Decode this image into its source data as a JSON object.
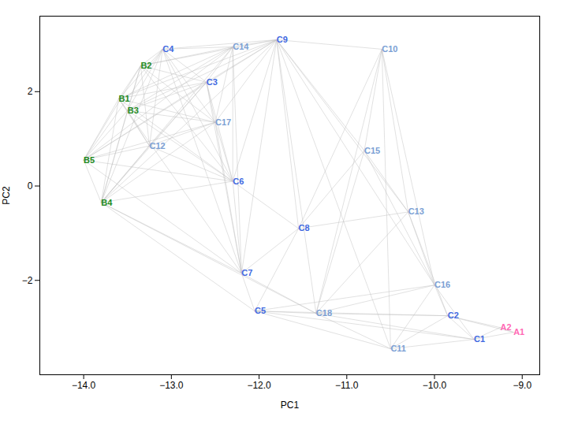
{
  "chart_data": {
    "type": "network",
    "xlabel": "PC1",
    "ylabel": "PC2",
    "xlim": [
      -14.5,
      -8.8
    ],
    "ylim": [
      -4.0,
      3.6
    ],
    "xticks": [
      -14,
      -13,
      -12,
      -11,
      -10,
      -9
    ],
    "yticks": [
      -2,
      0,
      2
    ],
    "color": "#C0C0C0",
    "nodes": [
      {
        "name": "A1",
        "label": "A1",
        "x": -9.1,
        "y": -3.1,
        "color": "#FF69B4"
      },
      {
        "name": "A2",
        "label": "A2",
        "x": -9.25,
        "y": -3.0,
        "color": "#FF69B4"
      },
      {
        "name": "B1",
        "label": "B1",
        "x": -13.6,
        "y": 1.85,
        "color": "#228B22"
      },
      {
        "name": "B2",
        "label": "B2",
        "x": -13.35,
        "y": 2.55,
        "color": "#228B22"
      },
      {
        "name": "B3",
        "label": "B3",
        "x": -13.5,
        "y": 1.6,
        "color": "#228B22"
      },
      {
        "name": "B4",
        "label": "B4",
        "x": -13.8,
        "y": -0.35,
        "color": "#228B22"
      },
      {
        "name": "B5",
        "label": "B5",
        "x": -14.0,
        "y": 0.55,
        "color": "#228B22"
      },
      {
        "name": "C1",
        "label": "C1",
        "x": -9.55,
        "y": -3.25,
        "color": "#4169E1"
      },
      {
        "name": "C2",
        "label": "C2",
        "x": -9.85,
        "y": -2.75,
        "color": "#4169E1"
      },
      {
        "name": "C3",
        "label": "C3",
        "x": -12.6,
        "y": 2.2,
        "color": "#4169E1"
      },
      {
        "name": "C4",
        "label": "C4",
        "x": -13.1,
        "y": 2.9,
        "color": "#4169E1"
      },
      {
        "name": "C5",
        "label": "C5",
        "x": -12.05,
        "y": -2.65,
        "color": "#4169E1"
      },
      {
        "name": "C6",
        "label": "C6",
        "x": -12.3,
        "y": 0.1,
        "color": "#4169E1"
      },
      {
        "name": "C7",
        "label": "C7",
        "x": -12.2,
        "y": -1.85,
        "color": "#4169E1"
      },
      {
        "name": "C8",
        "label": "C8",
        "x": -11.55,
        "y": -0.9,
        "color": "#4169E1"
      },
      {
        "name": "C9",
        "label": "C9",
        "x": -11.8,
        "y": 3.1,
        "color": "#4169E1"
      },
      {
        "name": "C10",
        "label": "C10",
        "x": -10.6,
        "y": 2.9,
        "color": "#7B9FD4"
      },
      {
        "name": "C11",
        "label": "C11",
        "x": -10.5,
        "y": -3.45,
        "color": "#7B9FD4"
      },
      {
        "name": "C12",
        "label": "C12",
        "x": -13.25,
        "y": 0.85,
        "color": "#7B9FD4"
      },
      {
        "name": "C13",
        "label": "C13",
        "x": -10.3,
        "y": -0.55,
        "color": "#7B9FD4"
      },
      {
        "name": "C14",
        "label": "C14",
        "x": -12.3,
        "y": 2.95,
        "color": "#7B9FD4"
      },
      {
        "name": "C15",
        "label": "C15",
        "x": -10.8,
        "y": 0.75,
        "color": "#7B9FD4"
      },
      {
        "name": "C16",
        "label": "C16",
        "x": -10.0,
        "y": -2.1,
        "color": "#7B9FD4"
      },
      {
        "name": "C17",
        "label": "C17",
        "x": -12.5,
        "y": 1.35,
        "color": "#7B9FD4"
      },
      {
        "name": "C18",
        "label": "C18",
        "x": -11.35,
        "y": -2.7,
        "color": "#7B9FD4"
      }
    ],
    "edges": [
      [
        "B1",
        "B2"
      ],
      [
        "B1",
        "B3"
      ],
      [
        "B1",
        "B4"
      ],
      [
        "B1",
        "B5"
      ],
      [
        "B1",
        "C3"
      ],
      [
        "B1",
        "C4"
      ],
      [
        "B1",
        "C6"
      ],
      [
        "B1",
        "C7"
      ],
      [
        "B1",
        "C9"
      ],
      [
        "B1",
        "C12"
      ],
      [
        "B1",
        "C14"
      ],
      [
        "B1",
        "C17"
      ],
      [
        "B2",
        "B3"
      ],
      [
        "B2",
        "B4"
      ],
      [
        "B2",
        "B5"
      ],
      [
        "B2",
        "C3"
      ],
      [
        "B2",
        "C4"
      ],
      [
        "B2",
        "C6"
      ],
      [
        "B2",
        "C9"
      ],
      [
        "B2",
        "C12"
      ],
      [
        "B2",
        "C14"
      ],
      [
        "B2",
        "C17"
      ],
      [
        "B3",
        "B4"
      ],
      [
        "B3",
        "B5"
      ],
      [
        "B3",
        "C3"
      ],
      [
        "B3",
        "C4"
      ],
      [
        "B3",
        "C6"
      ],
      [
        "B3",
        "C9"
      ],
      [
        "B3",
        "C12"
      ],
      [
        "B3",
        "C14"
      ],
      [
        "B3",
        "C17"
      ],
      [
        "B4",
        "B5"
      ],
      [
        "B4",
        "C3"
      ],
      [
        "B4",
        "C4"
      ],
      [
        "B4",
        "C5"
      ],
      [
        "B4",
        "C6"
      ],
      [
        "B4",
        "C7"
      ],
      [
        "B4",
        "C9"
      ],
      [
        "B4",
        "C12"
      ],
      [
        "B4",
        "C14"
      ],
      [
        "B4",
        "C17"
      ],
      [
        "B4",
        "C18"
      ],
      [
        "B5",
        "C3"
      ],
      [
        "B5",
        "C4"
      ],
      [
        "B5",
        "C6"
      ],
      [
        "B5",
        "C7"
      ],
      [
        "B5",
        "C9"
      ],
      [
        "B5",
        "C12"
      ],
      [
        "B5",
        "C14"
      ],
      [
        "B5",
        "C17"
      ],
      [
        "C3",
        "C4"
      ],
      [
        "C3",
        "C6"
      ],
      [
        "C3",
        "C7"
      ],
      [
        "C3",
        "C9"
      ],
      [
        "C3",
        "C12"
      ],
      [
        "C3",
        "C14"
      ],
      [
        "C3",
        "C17"
      ],
      [
        "C4",
        "C6"
      ],
      [
        "C4",
        "C7"
      ],
      [
        "C4",
        "C9"
      ],
      [
        "C4",
        "C12"
      ],
      [
        "C4",
        "C14"
      ],
      [
        "C4",
        "C17"
      ],
      [
        "C5",
        "C1"
      ],
      [
        "C5",
        "C2"
      ],
      [
        "C5",
        "C7"
      ],
      [
        "C5",
        "C8"
      ],
      [
        "C5",
        "C11"
      ],
      [
        "C5",
        "C16"
      ],
      [
        "C5",
        "C18"
      ],
      [
        "C6",
        "C7"
      ],
      [
        "C6",
        "C8"
      ],
      [
        "C6",
        "C9"
      ],
      [
        "C6",
        "C12"
      ],
      [
        "C6",
        "C14"
      ],
      [
        "C6",
        "C17"
      ],
      [
        "C7",
        "C8"
      ],
      [
        "C7",
        "C9"
      ],
      [
        "C7",
        "C14"
      ],
      [
        "C7",
        "C17"
      ],
      [
        "C7",
        "C18"
      ],
      [
        "C8",
        "C9"
      ],
      [
        "C8",
        "C10"
      ],
      [
        "C8",
        "C13"
      ],
      [
        "C8",
        "C15"
      ],
      [
        "C9",
        "C10"
      ],
      [
        "C9",
        "C11"
      ],
      [
        "C9",
        "C13"
      ],
      [
        "C9",
        "C14"
      ],
      [
        "C9",
        "C15"
      ],
      [
        "C9",
        "C16"
      ],
      [
        "C9",
        "C17"
      ],
      [
        "C9",
        "C18"
      ],
      [
        "C10",
        "C11"
      ],
      [
        "C10",
        "C13"
      ],
      [
        "C10",
        "C15"
      ],
      [
        "C10",
        "C16"
      ],
      [
        "C10",
        "C18"
      ],
      [
        "C11",
        "C16"
      ],
      [
        "C11",
        "C18"
      ],
      [
        "C12",
        "C17"
      ],
      [
        "C13",
        "C15"
      ],
      [
        "C13",
        "C16"
      ],
      [
        "C13",
        "C18"
      ],
      [
        "C14",
        "C17"
      ],
      [
        "C15",
        "C16"
      ],
      [
        "C15",
        "C18"
      ],
      [
        "C16",
        "C18"
      ],
      [
        "C1",
        "C2"
      ],
      [
        "C1",
        "C11"
      ],
      [
        "C1",
        "C16"
      ],
      [
        "C1",
        "C18"
      ],
      [
        "C2",
        "C11"
      ],
      [
        "C2",
        "C13"
      ],
      [
        "C2",
        "C16"
      ],
      [
        "C2",
        "C18"
      ],
      [
        "A1",
        "A2"
      ],
      [
        "A1",
        "C1"
      ],
      [
        "A1",
        "C2"
      ],
      [
        "A2",
        "C1"
      ],
      [
        "A2",
        "C2"
      ]
    ]
  }
}
